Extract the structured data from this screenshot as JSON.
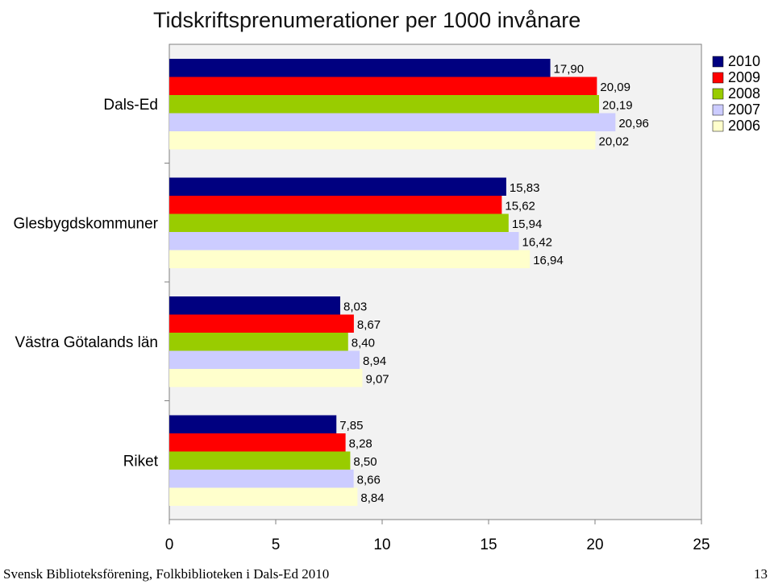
{
  "title": "Tidskriftsprenumerationer per 1000 invånare",
  "footer": "Svensk Biblioteksförening, Folkbiblioteken i Dals-Ed 2010",
  "page_number": "13",
  "chart_data": {
    "type": "bar",
    "orientation": "horizontal",
    "title": "Tidskriftsprenumerationer per 1000 invånare",
    "xlabel": "",
    "ylabel": "",
    "xlim": [
      0,
      25
    ],
    "x_ticks": [
      "0",
      "5",
      "10",
      "15",
      "20",
      "25"
    ],
    "grid": false,
    "legend_position": "top-right",
    "plot_background": "#f2f2f2",
    "categories": [
      "Dals-Ed",
      "Glesbygdskommuner",
      "Västra Götalands län",
      "Riket"
    ],
    "series": [
      {
        "name": "2010",
        "color": "#000080",
        "values": [
          17.9,
          15.83,
          8.03,
          7.85
        ],
        "labels": [
          "17,90",
          "15,83",
          "8,03",
          "7,85"
        ]
      },
      {
        "name": "2009",
        "color": "#ff0000",
        "values": [
          20.09,
          15.62,
          8.67,
          8.28
        ],
        "labels": [
          "20,09",
          "15,62",
          "8,67",
          "8,28"
        ]
      },
      {
        "name": "2008",
        "color": "#99cc00",
        "values": [
          20.19,
          15.94,
          8.4,
          8.5
        ],
        "labels": [
          "20,19",
          "15,94",
          "8,40",
          "8,50"
        ]
      },
      {
        "name": "2007",
        "color": "#ccccff",
        "values": [
          20.96,
          16.42,
          8.94,
          8.66
        ],
        "labels": [
          "20,96",
          "16,42",
          "8,94",
          "8,66"
        ]
      },
      {
        "name": "2006",
        "color": "#ffffcc",
        "values": [
          20.02,
          16.94,
          9.07,
          8.84
        ],
        "labels": [
          "20,02",
          "16,94",
          "9,07",
          "8,84"
        ]
      }
    ]
  }
}
